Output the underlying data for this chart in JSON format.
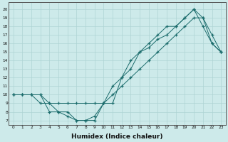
{
  "xlabel": "Humidex (Indice chaleur)",
  "x": [
    0,
    1,
    2,
    3,
    4,
    5,
    6,
    7,
    8,
    9,
    10,
    11,
    12,
    13,
    14,
    15,
    16,
    17,
    18,
    19,
    20,
    21,
    22,
    23
  ],
  "line1": [
    10,
    10,
    10,
    9,
    9,
    9,
    9,
    9,
    9,
    9,
    9,
    10,
    11,
    12,
    13,
    14,
    15,
    16,
    17,
    18,
    19,
    19,
    17,
    15
  ],
  "line2": [
    10,
    10,
    10,
    10,
    8,
    8,
    7.5,
    7,
    7,
    7,
    9,
    9,
    12,
    14,
    15,
    16,
    17,
    18,
    18,
    19,
    20,
    19,
    16,
    15
  ],
  "line3": [
    10,
    10,
    10,
    10,
    9,
    8,
    8,
    7,
    7,
    7.5,
    9,
    11,
    12,
    13,
    15,
    15.5,
    16.5,
    17,
    18,
    19,
    20,
    18,
    16,
    15
  ],
  "line_color": "#1a6b6b",
  "bg_color": "#cdeaea",
  "grid_color": "#aed4d4",
  "ylim_min": 7,
  "ylim_max": 20,
  "xlim_min": 0,
  "xlim_max": 23
}
